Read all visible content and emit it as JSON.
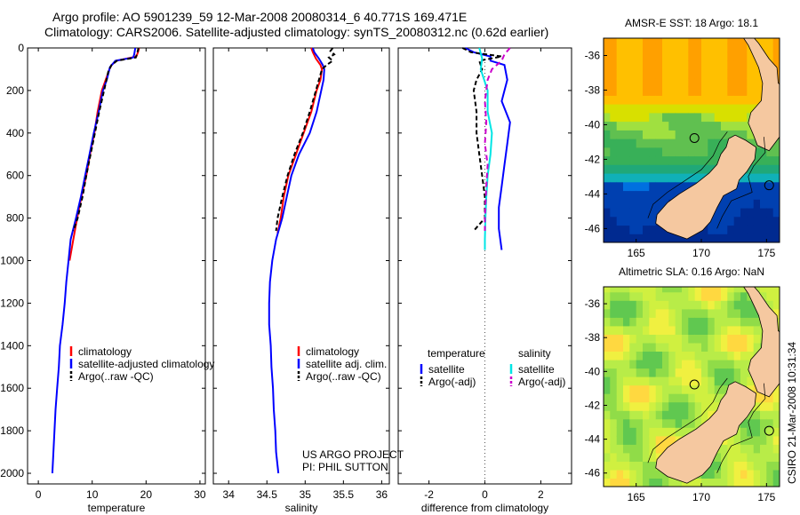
{
  "title": {
    "line1": "Argo profile: AO 5901239_59 12-Mar-2008 20080314_6 40.771S 169.471E",
    "line2": "Climatology: CARS2006. Satellite-adjusted climatology: synTS_20080312.nc (0.62d earlier)"
  },
  "colors": {
    "climatology": "#ff0000",
    "satellite": "#0000ff",
    "argo": "#000000",
    "argo_adj_salinity": "#cc00cc",
    "satellite_salinity": "#00e5e5",
    "land": "#f5c8a0"
  },
  "watermark": "CSIRO 21-Mar-2008 10:31:34",
  "chart_data": [
    {
      "id": "temperature",
      "type": "line",
      "xlabel": "temperature",
      "ylabel": "",
      "xlim": [
        -2,
        31
      ],
      "ylim": [
        2050,
        0
      ],
      "xticks": [
        0,
        10,
        20,
        30
      ],
      "yticks": [
        0,
        200,
        400,
        600,
        800,
        1000,
        1200,
        1400,
        1600,
        1800,
        2000
      ],
      "legend": {
        "position": "center-right",
        "entries": [
          "climatology",
          "satellite-adjusted climatology",
          "Argo(..raw -QC)"
        ]
      },
      "series": [
        {
          "name": "climatology",
          "color": "#ff0000",
          "dash": "",
          "points": [
            [
              18.7,
              0
            ],
            [
              18.5,
              20
            ],
            [
              18.2,
              40
            ],
            [
              14.5,
              60
            ],
            [
              13.6,
              80
            ],
            [
              13.2,
              100
            ],
            [
              12.5,
              150
            ],
            [
              11.8,
              200
            ],
            [
              11.0,
              300
            ],
            [
              10.4,
              400
            ],
            [
              9.6,
              500
            ],
            [
              8.9,
              600
            ],
            [
              8.0,
              700
            ],
            [
              7.2,
              800
            ],
            [
              6.5,
              900
            ],
            [
              5.8,
              1000
            ]
          ]
        },
        {
          "name": "satellite-adjusted climatology",
          "color": "#0000ff",
          "dash": "",
          "points": [
            [
              18.0,
              0
            ],
            [
              17.8,
              30
            ],
            [
              17.6,
              45
            ],
            [
              14.3,
              60
            ],
            [
              13.3,
              90
            ],
            [
              12.7,
              150
            ],
            [
              12.0,
              200
            ],
            [
              11.2,
              300
            ],
            [
              10.3,
              400
            ],
            [
              9.5,
              500
            ],
            [
              8.7,
              600
            ],
            [
              7.9,
              700
            ],
            [
              7.0,
              800
            ],
            [
              6.0,
              900
            ],
            [
              5.6,
              1000
            ],
            [
              5.2,
              1100
            ],
            [
              4.9,
              1200
            ],
            [
              4.5,
              1300
            ],
            [
              4.0,
              1400
            ],
            [
              3.8,
              1500
            ],
            [
              3.5,
              1600
            ],
            [
              3.2,
              1700
            ],
            [
              3.0,
              1800
            ],
            [
              2.8,
              1900
            ],
            [
              2.6,
              2000
            ]
          ]
        },
        {
          "name": "Argo(..raw -QC)",
          "color": "#000000",
          "dash": "5,3",
          "points": [
            [
              18.6,
              0
            ],
            [
              18.4,
              20
            ],
            [
              18.1,
              45
            ],
            [
              14.6,
              60
            ],
            [
              13.6,
              80
            ],
            [
              13.0,
              110
            ],
            [
              12.2,
              200
            ],
            [
              11.3,
              300
            ],
            [
              10.5,
              400
            ],
            [
              9.7,
              500
            ],
            [
              8.9,
              600
            ],
            [
              8.2,
              700
            ],
            [
              7.3,
              800
            ],
            [
              6.5,
              860
            ]
          ]
        }
      ]
    },
    {
      "id": "salinity",
      "type": "line",
      "xlabel": "salinity",
      "ylabel": "",
      "xlim": [
        33.8,
        36.1
      ],
      "ylim": [
        2050,
        0
      ],
      "xticks": [
        34,
        34.5,
        35,
        35.5,
        36
      ],
      "yticks": [
        0,
        200,
        400,
        600,
        800,
        1000,
        1200,
        1400,
        1600,
        1800,
        2000
      ],
      "legend": {
        "position": "center-right",
        "entries": [
          "climatology",
          "satellite adj. clim.",
          "Argo(..raw -QC)"
        ]
      },
      "annotation": [
        "US ARGO PROJECT",
        "PI: PHIL SUTTON"
      ],
      "series": [
        {
          "name": "climatology",
          "color": "#ff0000",
          "dash": "",
          "points": [
            [
              35.08,
              0
            ],
            [
              35.1,
              20
            ],
            [
              35.14,
              50
            ],
            [
              35.2,
              80
            ],
            [
              35.22,
              100
            ],
            [
              35.2,
              150
            ],
            [
              35.15,
              200
            ],
            [
              35.08,
              300
            ],
            [
              34.98,
              400
            ],
            [
              34.88,
              500
            ],
            [
              34.78,
              600
            ],
            [
              34.72,
              700
            ],
            [
              34.68,
              800
            ],
            [
              34.64,
              870
            ]
          ]
        },
        {
          "name": "satellite adj. clim.",
          "color": "#0000ff",
          "dash": "",
          "points": [
            [
              35.1,
              0
            ],
            [
              35.12,
              20
            ],
            [
              35.18,
              50
            ],
            [
              35.23,
              80
            ],
            [
              35.25,
              100
            ],
            [
              35.24,
              150
            ],
            [
              35.21,
              200
            ],
            [
              35.15,
              300
            ],
            [
              35.06,
              400
            ],
            [
              34.92,
              500
            ],
            [
              34.82,
              600
            ],
            [
              34.76,
              700
            ],
            [
              34.7,
              800
            ],
            [
              34.62,
              900
            ],
            [
              34.57,
              1000
            ],
            [
              34.54,
              1100
            ],
            [
              34.53,
              1200
            ],
            [
              34.53,
              1300
            ],
            [
              34.55,
              1400
            ],
            [
              34.56,
              1500
            ],
            [
              34.58,
              1600
            ],
            [
              34.59,
              1700
            ],
            [
              34.61,
              1800
            ],
            [
              34.62,
              1900
            ],
            [
              34.65,
              2000
            ]
          ]
        },
        {
          "name": "Argo(..raw -QC)",
          "color": "#000000",
          "dash": "5,3",
          "points": [
            [
              35.36,
              0
            ],
            [
              35.33,
              15
            ],
            [
              35.38,
              30
            ],
            [
              35.31,
              45
            ],
            [
              35.36,
              60
            ],
            [
              35.28,
              80
            ],
            [
              35.22,
              100
            ],
            [
              35.18,
              150
            ],
            [
              35.14,
              200
            ],
            [
              35.06,
              300
            ],
            [
              34.97,
              400
            ],
            [
              34.86,
              500
            ],
            [
              34.77,
              600
            ],
            [
              34.7,
              700
            ],
            [
              34.64,
              800
            ],
            [
              34.62,
              860
            ]
          ]
        }
      ]
    },
    {
      "id": "difference",
      "type": "line",
      "xlabel": "difference from climatology",
      "ylabel": "",
      "xlim": [
        -3.1,
        3.1
      ],
      "ylim": [
        2050,
        0
      ],
      "xticks": [
        -2,
        0,
        2
      ],
      "yticks": [
        0,
        200,
        400,
        600,
        800,
        1000,
        1200,
        1400,
        1600,
        1800,
        2000
      ],
      "zero_line": 0,
      "legend": {
        "position": "center",
        "group_titles": [
          "temperature",
          "salinity"
        ],
        "entries": [
          "satellite",
          "Argo(-adj)",
          "satellite",
          "Argo(-adj)"
        ]
      },
      "series": [
        {
          "name": "temperature satellite",
          "color": "#0000ff",
          "dash": "",
          "points": [
            [
              -0.7,
              0
            ],
            [
              -0.4,
              20
            ],
            [
              0.2,
              40
            ],
            [
              0.2,
              60
            ],
            [
              0.7,
              80
            ],
            [
              0.8,
              150
            ],
            [
              0.6,
              250
            ],
            [
              0.9,
              350
            ],
            [
              0.8,
              450
            ],
            [
              0.7,
              550
            ],
            [
              0.6,
              650
            ],
            [
              0.5,
              750
            ],
            [
              0.5,
              850
            ],
            [
              0.6,
              950
            ]
          ]
        },
        {
          "name": "temperature Argo(-adj)",
          "color": "#000000",
          "dash": "5,3",
          "points": [
            [
              -0.8,
              0
            ],
            [
              -0.5,
              20
            ],
            [
              0.6,
              40
            ],
            [
              -0.2,
              60
            ],
            [
              -0.1,
              100
            ],
            [
              -0.3,
              150
            ],
            [
              -0.4,
              200
            ],
            [
              -0.3,
              300
            ],
            [
              -0.3,
              400
            ],
            [
              -0.2,
              500
            ],
            [
              -0.1,
              600
            ],
            [
              0.0,
              700
            ],
            [
              0.0,
              800
            ],
            [
              -0.4,
              860
            ]
          ]
        },
        {
          "name": "salinity satellite",
          "color": "#00e5e5",
          "dash": "",
          "points": [
            [
              -0.2,
              0
            ],
            [
              -0.1,
              50
            ],
            [
              -0.15,
              100
            ],
            [
              0.1,
              200
            ],
            [
              0.1,
              300
            ],
            [
              0.25,
              400
            ],
            [
              0.2,
              500
            ],
            [
              0.1,
              600
            ],
            [
              0.05,
              700
            ],
            [
              0.02,
              800
            ],
            [
              0.0,
              900
            ],
            [
              0.0,
              950
            ]
          ]
        },
        {
          "name": "salinity Argo(-adj)",
          "color": "#cc00cc",
          "dash": "6,4",
          "points": [
            [
              0.9,
              0
            ],
            [
              0.7,
              30
            ],
            [
              0.6,
              60
            ],
            [
              0.25,
              100
            ],
            [
              0.1,
              150
            ],
            [
              0.0,
              250
            ],
            [
              0.05,
              350
            ],
            [
              0.0,
              450
            ],
            [
              0.1,
              550
            ],
            [
              0.05,
              650
            ],
            [
              0.0,
              800
            ],
            [
              0.0,
              860
            ]
          ]
        }
      ]
    },
    {
      "id": "sst_map",
      "type": "heatmap",
      "title": "AMSR-E SST: 18 Argo: 18.1",
      "xlim": [
        162.5,
        176.0
      ],
      "ylim": [
        -46.8,
        -35.0
      ],
      "xticks": [
        165,
        170,
        175
      ],
      "yticks": [
        -36,
        -38,
        -40,
        -42,
        -44,
        -46
      ],
      "argo_point": [
        169.47,
        -40.77
      ],
      "other_point": [
        175.2,
        -43.5
      ]
    },
    {
      "id": "sla_map",
      "type": "heatmap",
      "title": "Altimetric SLA: 0.16 Argo: NaN",
      "xlim": [
        162.5,
        176.0
      ],
      "ylim": [
        -46.8,
        -35.0
      ],
      "xticks": [
        165,
        170,
        175
      ],
      "yticks": [
        -36,
        -38,
        -40,
        -42,
        -44,
        -46
      ],
      "argo_point": [
        169.47,
        -40.77
      ],
      "other_point": [
        175.2,
        -43.5
      ]
    }
  ]
}
